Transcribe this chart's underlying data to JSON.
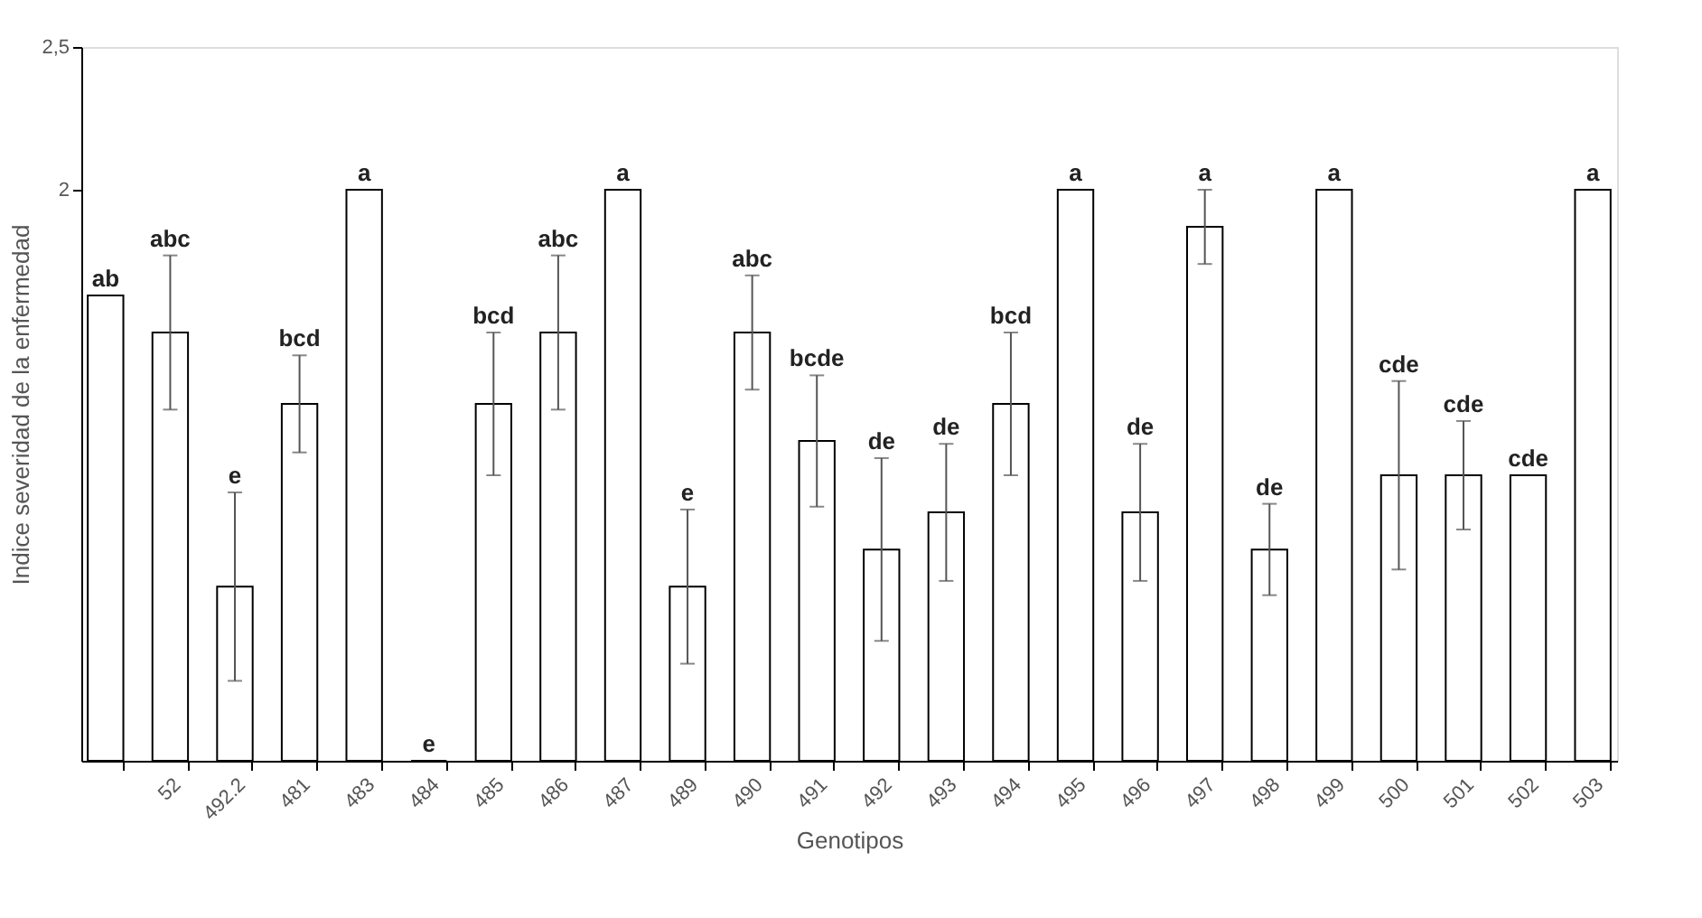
{
  "chart_data": {
    "type": "bar",
    "xlabel": "Genotipos",
    "ylabel": "Indice severidad de la enfermedad",
    "categories": [
      null,
      "52",
      "492.2",
      "481",
      "483",
      "484",
      "485",
      "486",
      "487",
      "489",
      "490",
      "491",
      "492",
      "493",
      "494",
      "495",
      "496",
      "497",
      "498",
      "499",
      "500",
      "501",
      "502",
      "503"
    ],
    "values": [
      1.63,
      1.5,
      0.61,
      1.25,
      2,
      0,
      1.25,
      1.5,
      2,
      0.61,
      1.5,
      1.12,
      0.74,
      0.87,
      1.25,
      2,
      0.87,
      1.87,
      0.74,
      2,
      1.0,
      1.0,
      1.0,
      2
    ],
    "errors": [
      null,
      0.27,
      0.33,
      0.17,
      null,
      null,
      0.25,
      0.27,
      null,
      0.27,
      0.2,
      0.23,
      0.32,
      0.24,
      0.25,
      null,
      0.24,
      0.13,
      0.16,
      null,
      0.33,
      0.19,
      null,
      null
    ],
    "annotations": [
      "ab",
      "abc",
      "e",
      "bcd",
      "a",
      "e",
      "bcd",
      "abc",
      "a",
      "e",
      "abc",
      "bcde",
      "de",
      "de",
      "bcd",
      "a",
      "de",
      "a",
      "de",
      "a",
      "cde",
      "cde",
      "cde",
      "a"
    ],
    "color": "#ffffff",
    "ylim": [
      0,
      2.5
    ],
    "yticks": [
      {
        "value": 2,
        "label": "2"
      },
      {
        "value": 2.5,
        "label": "2,5"
      }
    ],
    "grid": false
  }
}
